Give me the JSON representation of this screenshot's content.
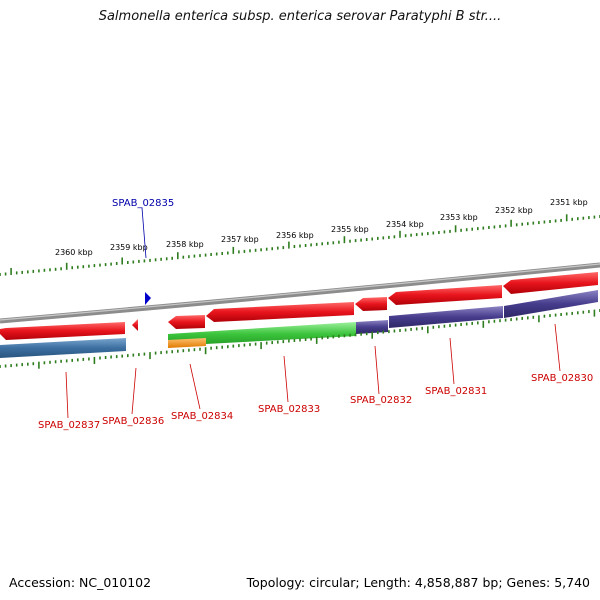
{
  "title": "Salmonella enterica subsp. enterica serovar Paratyphi B str....",
  "footer": {
    "accession": "Accession: NC_010102",
    "summary": "Topology: circular; Length: 4,858,887 bp; Genes: 5,740"
  },
  "ruler_labels": [
    "2360 kbp",
    "2359 kbp",
    "2358 kbp",
    "2357 kbp",
    "2356 kbp",
    "2355 kbp",
    "2354 kbp",
    "2353 kbp",
    "2352 kbp",
    "2351 kbp"
  ],
  "gene_labels": {
    "spab_02835": "SPAB_02835",
    "spab_02837": "SPAB_02837",
    "spab_02836": "SPAB_02836",
    "spab_02834": "SPAB_02834",
    "spab_02833": "SPAB_02833",
    "spab_02832": "SPAB_02832",
    "spab_02831": "SPAB_02831",
    "spab_02830": "SPAB_02830"
  },
  "colors": {
    "gene_red": "#e8141c",
    "cds_blue": "#3c6fa0",
    "cds_purple": "#463c8c",
    "cds_green": "#3cc43c",
    "cds_orange": "#f08c14",
    "tick_green": "#2e7d1e",
    "backbone_gray": "#8c8c8c",
    "label_red": "#cc0000",
    "label_blue": "#0000aa"
  }
}
